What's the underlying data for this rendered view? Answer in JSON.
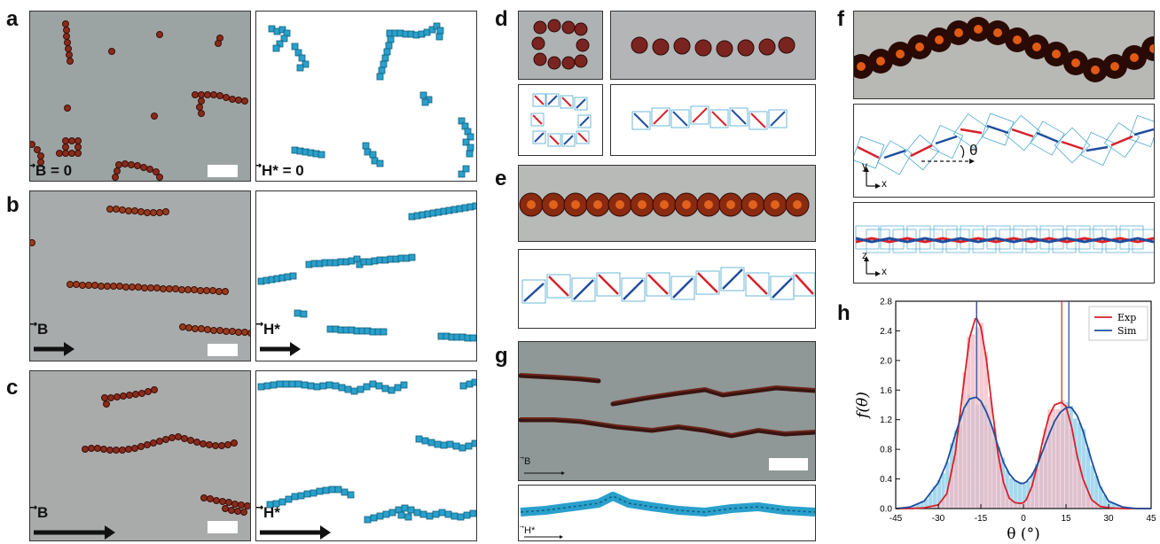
{
  "panels": {
    "a": {
      "letter": "a",
      "exp_field": "⃗B = 0",
      "sim_field": "⃗H* = 0"
    },
    "b": {
      "letter": "b",
      "exp_field": "⃗B",
      "sim_field": "⃗H*"
    },
    "c": {
      "letter": "c",
      "exp_field": "⃗B",
      "sim_field": "⃗H*"
    },
    "d": {
      "letter": "d"
    },
    "e": {
      "letter": "e"
    },
    "f": {
      "letter": "f",
      "angle_label": "θ",
      "axes_xy": {
        "y": "y",
        "x": "x"
      },
      "axes_zx": {
        "z": "z",
        "x": "x"
      }
    },
    "g": {
      "letter": "g",
      "exp_field": "⃗B",
      "sim_field": "⃗H*"
    },
    "h": {
      "letter": "h"
    }
  },
  "colors": {
    "exp": "#d9202a",
    "sim": "#1f4e9e",
    "exp_hist": "#f2b8c3",
    "sim_hist": "#8fd0ea",
    "particle_exp": "#8a2a1a",
    "particle_sim": "#2aa0cc"
  },
  "chart_data": {
    "type": "histogram",
    "xlabel": "θ (°)",
    "ylabel": "f(θ)",
    "xlim": [
      -45,
      45
    ],
    "ylim": [
      0,
      2.8
    ],
    "xticks": [
      "-45",
      "-30",
      "-15",
      "0",
      "15",
      "30",
      "45"
    ],
    "yticks": [
      "0.0",
      "0.4",
      "0.8",
      "1.2",
      "1.6",
      "2.0",
      "2.4",
      "2.8"
    ],
    "legend_position": "top-right",
    "series": [
      {
        "name": "Exp",
        "peaks": [
          -16.5,
          13.5
        ],
        "peak_heights": [
          2.57,
          1.43
        ],
        "x": [
          -45,
          -40,
          -35,
          -30,
          -27,
          -24,
          -21,
          -19,
          -17,
          -16.5,
          -15,
          -13,
          -11,
          -9,
          -7,
          -5,
          -3,
          -1,
          0,
          1,
          3,
          5,
          7,
          9,
          11,
          13,
          13.5,
          15,
          17,
          19,
          21,
          24,
          27,
          30,
          35,
          40,
          45
        ],
        "y": [
          0,
          0,
          0.01,
          0.05,
          0.2,
          0.75,
          1.7,
          2.3,
          2.56,
          2.57,
          2.45,
          2.0,
          1.35,
          0.75,
          0.35,
          0.14,
          0.08,
          0.07,
          0.08,
          0.12,
          0.3,
          0.6,
          0.95,
          1.25,
          1.4,
          1.43,
          1.43,
          1.38,
          1.1,
          0.7,
          0.4,
          0.12,
          0.03,
          0.01,
          0,
          0,
          0
        ]
      },
      {
        "name": "Sim",
        "peaks": [
          -16.5,
          16
        ],
        "peak_heights": [
          1.5,
          1.37
        ],
        "x": [
          -45,
          -40,
          -35,
          -30,
          -27,
          -24,
          -21,
          -19,
          -17,
          -16.5,
          -15,
          -13,
          -11,
          -9,
          -7,
          -5,
          -3,
          -1,
          0,
          1,
          3,
          5,
          7,
          9,
          11,
          13,
          15,
          16,
          17,
          19,
          21,
          24,
          27,
          30,
          35,
          40,
          45
        ],
        "y": [
          0,
          0.02,
          0.1,
          0.35,
          0.62,
          1.0,
          1.35,
          1.48,
          1.5,
          1.5,
          1.45,
          1.3,
          1.1,
          0.85,
          0.62,
          0.47,
          0.38,
          0.34,
          0.34,
          0.36,
          0.45,
          0.6,
          0.8,
          1.0,
          1.18,
          1.3,
          1.36,
          1.37,
          1.36,
          1.25,
          1.05,
          0.65,
          0.3,
          0.1,
          0.02,
          0,
          0
        ]
      }
    ]
  }
}
